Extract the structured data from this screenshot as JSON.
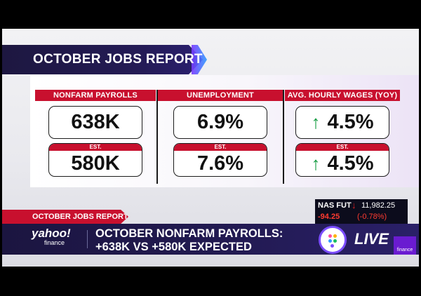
{
  "report": {
    "title": "OCTOBER JOBS REPORT",
    "columns": [
      {
        "header": "NONFARM PAYROLLS",
        "actual": "638K",
        "est_label": "EST.",
        "estimate": "580K",
        "arrow": ""
      },
      {
        "header": "UNEMPLOYMENT",
        "actual": "6.9%",
        "est_label": "EST.",
        "estimate": "7.6%",
        "arrow": ""
      },
      {
        "header": "AVG. HOURLY WAGES (YOY)",
        "actual": "4.5%",
        "est_label": "EST.",
        "estimate": "4.5%",
        "arrow": "↑"
      }
    ]
  },
  "lower_third": {
    "tag": "OCTOBER JOBS REPORT",
    "logo_main": "yahoo!",
    "logo_sub": "finance",
    "headline_line1": "OCTOBER NONFARM PAYROLLS:",
    "headline_line2": "+638K VS +580K EXPECTED",
    "live": "LIVE",
    "corner_label": "finance"
  },
  "ticker": {
    "name": "NAS FUT",
    "arrow": "↓",
    "price": "11,982.25",
    "change": "-94.25",
    "percent": "(-0.78%)"
  },
  "colors": {
    "accent_red": "#c8102e",
    "navy": "#1d1740",
    "up_green": "#109a3e",
    "purple": "#7b4dff"
  }
}
